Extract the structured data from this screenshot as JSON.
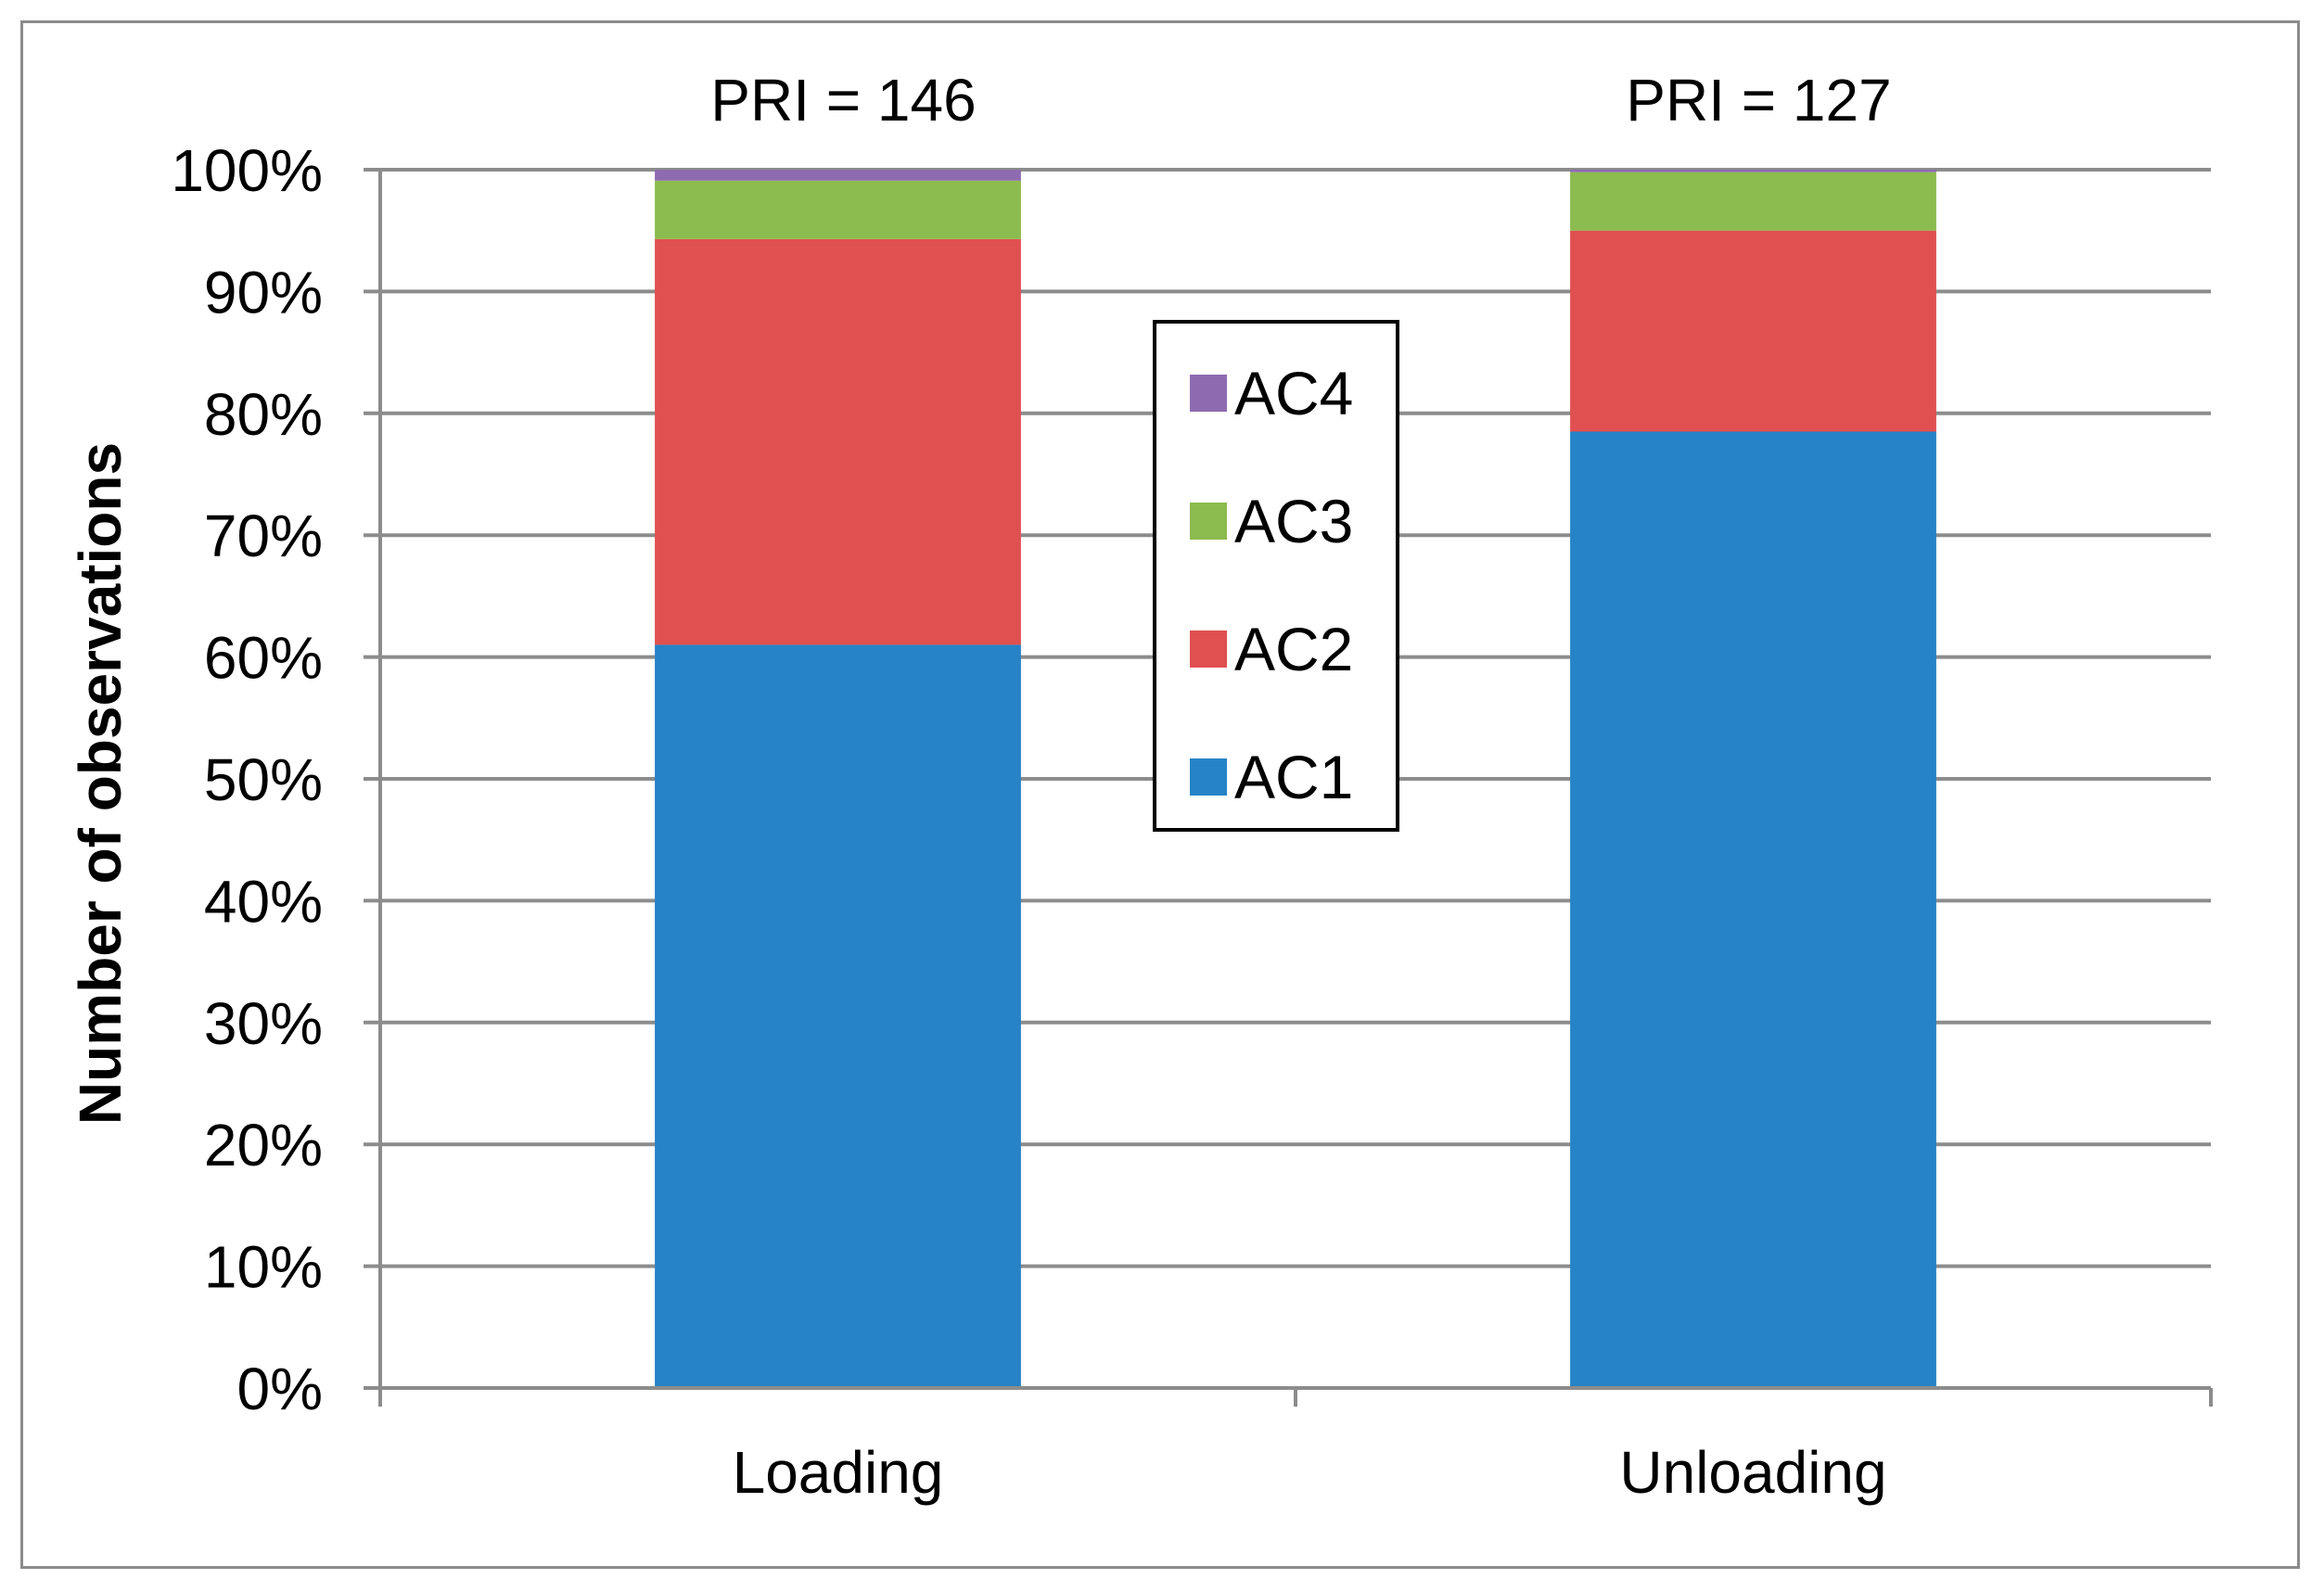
{
  "chart_data": {
    "type": "bar",
    "stacked": true,
    "percent": true,
    "categories": [
      "Loading",
      "Unloading"
    ],
    "annotations": [
      "PRI = 146",
      "PRI = 127"
    ],
    "series": [
      {
        "name": "AC1",
        "color": "#2683c6",
        "values": [
          61,
          78.5
        ]
      },
      {
        "name": "AC2",
        "color": "#e05050",
        "values": [
          33.3,
          16.5
        ]
      },
      {
        "name": "AC3",
        "color": "#8cbb4f",
        "values": [
          4.8,
          4.8
        ]
      },
      {
        "name": "AC4",
        "color": "#8e6bb0",
        "values": [
          0.9,
          0.2
        ]
      }
    ],
    "ylabel": "Number of observations",
    "xlabel": "",
    "ylim": [
      0,
      100
    ],
    "yticks": [
      "0%",
      "10%",
      "20%",
      "30%",
      "40%",
      "50%",
      "60%",
      "70%",
      "80%",
      "90%",
      "100%"
    ],
    "grid": true,
    "legend_position": "center-top",
    "legend_order": [
      "AC4",
      "AC3",
      "AC2",
      "AC1"
    ]
  }
}
